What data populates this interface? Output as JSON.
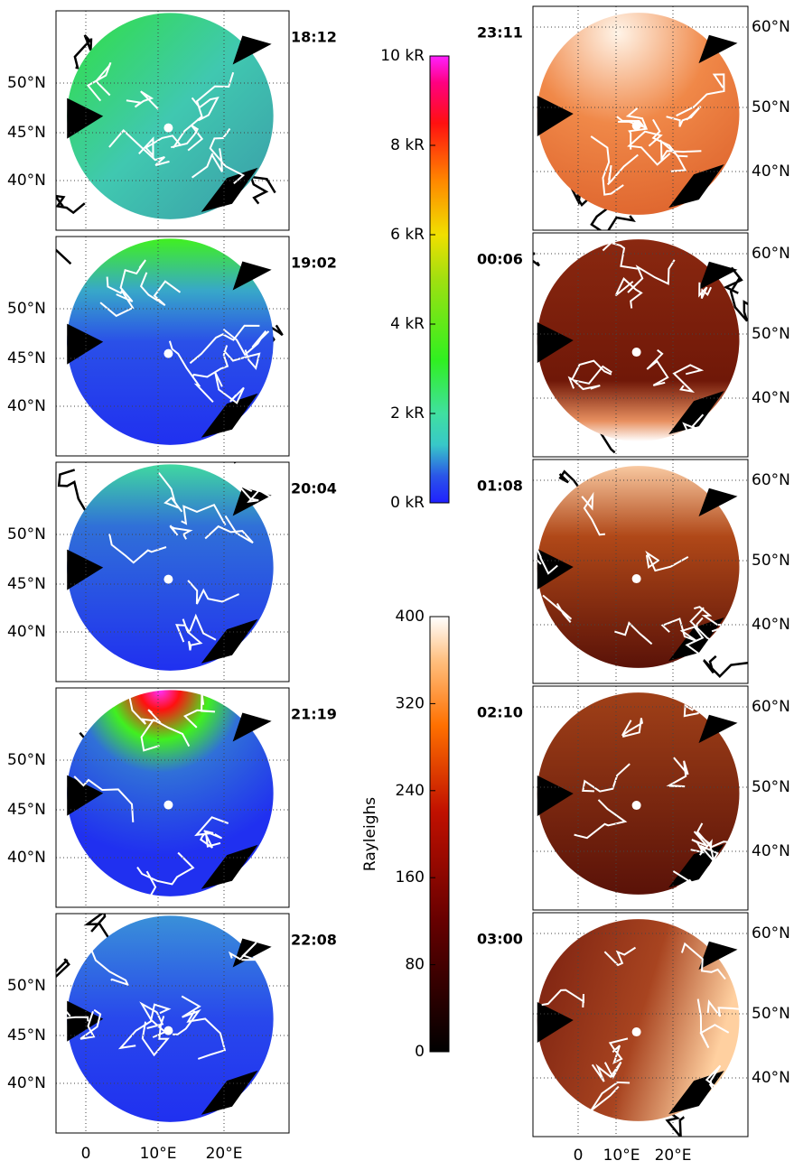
{
  "left_column": {
    "panels": [
      {
        "time": "18:12"
      },
      {
        "time": "19:02"
      },
      {
        "time": "20:04"
      },
      {
        "time": "21:19"
      },
      {
        "time": "22:08"
      }
    ],
    "lat_labels": [
      "50°N",
      "45°N",
      "40°N"
    ],
    "lon_labels": [
      "0",
      "10°E",
      "20°E"
    ]
  },
  "right_column": {
    "panels": [
      {
        "time": "23:11"
      },
      {
        "time": "00:06"
      },
      {
        "time": "01:08"
      },
      {
        "time": "02:10"
      },
      {
        "time": "03:00"
      }
    ],
    "lat_labels": [
      "60°N",
      "50°N",
      "40°N"
    ],
    "lon_labels": [
      "0",
      "10°E",
      "20°E"
    ]
  },
  "colorbar_top": {
    "lim": [
      0,
      10
    ],
    "ticks": [
      {
        "value": 0,
        "label": "0 kR"
      },
      {
        "value": 2,
        "label": "2 kR"
      },
      {
        "value": 4,
        "label": "4 kR"
      },
      {
        "value": 6,
        "label": "6 kR"
      },
      {
        "value": 8,
        "label": "8 kR"
      },
      {
        "value": 10,
        "label": "10 kR"
      }
    ]
  },
  "colorbar_bottom": {
    "label": "Rayleighs",
    "lim": [
      0,
      400
    ],
    "ticks": [
      0,
      80,
      160,
      240,
      320,
      400
    ]
  }
}
